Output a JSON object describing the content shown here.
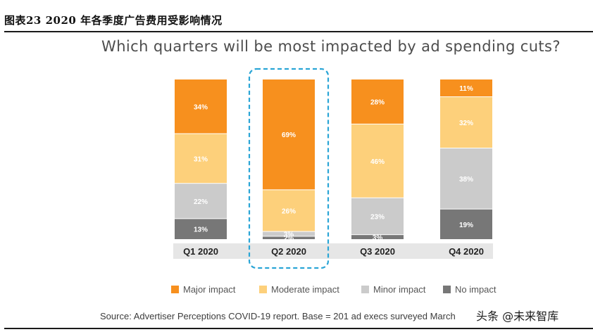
{
  "figure": {
    "caption": "图表23 2020 年各季度广告费用受影响情况",
    "source": "Source: Advertiser Perceptions COVID-19 report. Base = 201 ad execs surveyed March",
    "watermark": "头条 @未来智库"
  },
  "chart_data": {
    "type": "bar",
    "stacked": true,
    "title": "Which quarters will be most impacted by ad spending cuts?",
    "categories": [
      "Q1 2020",
      "Q2 2020",
      "Q3 2020",
      "Q4 2020"
    ],
    "highlighted_category": "Q2 2020",
    "series": [
      {
        "name": "Major impact",
        "color": "#f7901e",
        "values": [
          34,
          69,
          28,
          11
        ],
        "labels": [
          "34%",
          "69%",
          "28%",
          "11%"
        ]
      },
      {
        "name": "Moderate impact",
        "color": "#fdd07b",
        "values": [
          31,
          26,
          46,
          32
        ],
        "labels": [
          "31%",
          "26%",
          "46%",
          "32%"
        ]
      },
      {
        "name": "Minor impact",
        "color": "#cbcbcb",
        "values": [
          22,
          3,
          23,
          38
        ],
        "labels": [
          "22%",
          "3%",
          "23%",
          "38%"
        ]
      },
      {
        "name": "No impact",
        "color": "#777777",
        "values": [
          13,
          2,
          3,
          19
        ],
        "labels": [
          "13%",
          "2%",
          "3%",
          "19%"
        ]
      }
    ],
    "ylim": [
      0,
      100
    ],
    "legend_position": "bottom"
  }
}
